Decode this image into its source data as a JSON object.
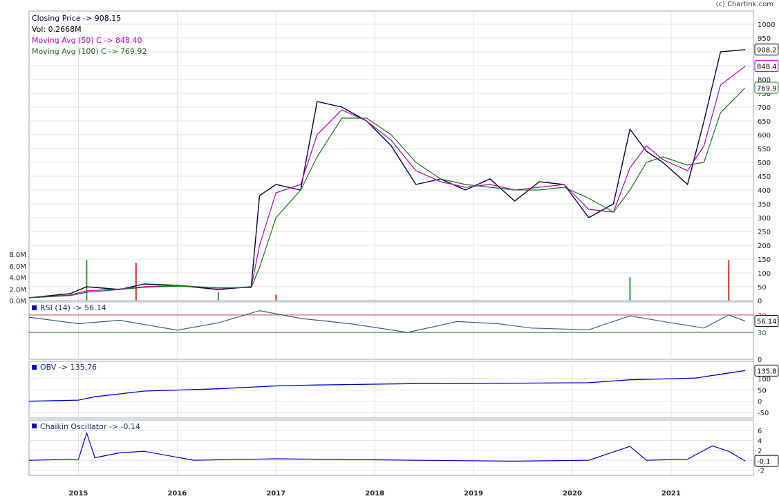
{
  "copyright": "(c) Chartink.com",
  "panels": {
    "price": {
      "legend": [
        {
          "text": "Closing Price -> 908.15",
          "color": "#00003c"
        },
        {
          "text": "Vol: 0.2668M",
          "color": "#000000"
        },
        {
          "text": "Moving Avg (50) C -> 848.40",
          "color": "#b400b4"
        },
        {
          "text": "Moving Avg (100) C -> 769.92",
          "color": "#1e6e1e"
        }
      ],
      "y_ticks": [
        "1000",
        "950",
        "900",
        "850",
        "800",
        "750",
        "700",
        "650",
        "600",
        "550",
        "500",
        "450",
        "400",
        "350",
        "300",
        "250",
        "200",
        "150",
        "100",
        "50",
        "0"
      ],
      "vol_ticks": [
        "8.0M",
        "6.0M",
        "4.0M",
        "2.0M",
        "0.0M"
      ],
      "last_labels": [
        {
          "text": "908.2",
          "value": 908.15,
          "color": "#000000"
        },
        {
          "text": "848.4",
          "value": 848.4,
          "color": "#b400b4"
        },
        {
          "text": "769.9",
          "value": 769.92,
          "color": "#1e6e1e"
        }
      ]
    },
    "rsi": {
      "legend": "RSI (14) -> 56.14",
      "y_ticks": [
        "70",
        "30",
        "0"
      ],
      "last_label": "56.14",
      "last_value": 56.14
    },
    "obv": {
      "legend": "OBV -> 135.76",
      "y_ticks": [
        "100",
        "50",
        "0",
        "-50"
      ],
      "last_label": "135.8",
      "last_value": 135.76
    },
    "chaikin": {
      "legend": "Chaikin Oscillator -> -0.14",
      "y_ticks": [
        "6",
        "4",
        "2",
        "0",
        "-2"
      ],
      "last_label": "-0.1",
      "last_value": -0.14
    }
  },
  "x_labels": [
    "2015",
    "2016",
    "2017",
    "2018",
    "2019",
    "2020",
    "2021"
  ],
  "colors": {
    "price": "#00003c",
    "ma50": "#b400b4",
    "ma100": "#1e6e1e",
    "indicator": "#0000c8",
    "rsi_line": "#3c5a82",
    "grid": "#dde3ea",
    "vol_up": "#2ca02c",
    "vol_down": "#d62728"
  },
  "chart_data": [
    {
      "type": "line",
      "title": "Closing Price -> 908.15",
      "x": [
        "2014-07",
        "2014-12",
        "2015-02",
        "2015-06",
        "2015-09",
        "2016-01",
        "2016-06",
        "2016-10",
        "2016-11",
        "2017-01",
        "2017-04",
        "2017-06",
        "2017-09",
        "2017-12",
        "2018-03",
        "2018-06",
        "2018-09",
        "2018-12",
        "2019-03",
        "2019-06",
        "2019-09",
        "2019-12",
        "2020-03",
        "2020-06",
        "2020-08",
        "2020-10",
        "2020-12",
        "2021-03",
        "2021-05",
        "2021-07",
        "2021-10"
      ],
      "series": [
        {
          "name": "Closing Price",
          "values": [
            10,
            25,
            50,
            40,
            60,
            55,
            40,
            50,
            380,
            420,
            400,
            720,
            700,
            650,
            560,
            420,
            440,
            400,
            440,
            360,
            430,
            420,
            300,
            350,
            620,
            540,
            500,
            420,
            650,
            900,
            908
          ]
        },
        {
          "name": "Moving Avg (50)",
          "values": [
            10,
            20,
            35,
            42,
            50,
            55,
            45,
            48,
            200,
            390,
            420,
            600,
            690,
            650,
            580,
            470,
            430,
            410,
            420,
            400,
            410,
            420,
            330,
            320,
            480,
            560,
            510,
            470,
            560,
            780,
            848
          ]
        },
        {
          "name": "Moving Avg (100)",
          "values": [
            10,
            18,
            30,
            40,
            48,
            52,
            46,
            47,
            120,
            300,
            400,
            520,
            660,
            660,
            600,
            500,
            440,
            420,
            410,
            400,
            400,
            410,
            370,
            320,
            400,
            500,
            520,
            490,
            500,
            680,
            770
          ]
        }
      ],
      "ylim": [
        0,
        1000
      ],
      "grid": true,
      "legend": "top-left"
    },
    {
      "type": "bar",
      "title": "Vol: 0.2668M",
      "categories": [
        "2015-02",
        "2015-08",
        "2016-06",
        "2017-01",
        "2020-08",
        "2021-08"
      ],
      "values": [
        7.0,
        6.5,
        1.5,
        1.0,
        4.0,
        7.0
      ],
      "ylim": [
        0,
        8
      ],
      "ylabel": ""
    },
    {
      "type": "line",
      "title": "RSI (14) -> 56.14",
      "x": [
        "2014-07",
        "2015-01",
        "2015-06",
        "2016-01",
        "2016-06",
        "2016-11",
        "2017-04",
        "2017-10",
        "2018-05",
        "2018-11",
        "2019-04",
        "2019-08",
        "2020-03",
        "2020-08",
        "2021-01",
        "2021-05",
        "2021-08",
        "2021-10"
      ],
      "series": [
        {
          "name": "RSI (14)",
          "values": [
            65,
            50,
            58,
            35,
            52,
            80,
            62,
            50,
            30,
            55,
            50,
            40,
            36,
            68,
            52,
            40,
            70,
            56
          ]
        }
      ],
      "ylim": [
        0,
        100
      ],
      "reference_lines": [
        70,
        30
      ]
    },
    {
      "type": "line",
      "title": "OBV -> 135.76",
      "x": [
        "2014-07",
        "2015-01",
        "2015-03",
        "2015-09",
        "2016-06",
        "2017-01",
        "2017-06",
        "2018-06",
        "2019-06",
        "2020-03",
        "2020-08",
        "2021-01",
        "2021-04",
        "2021-10"
      ],
      "series": [
        {
          "name": "OBV",
          "values": [
            0,
            5,
            20,
            45,
            55,
            68,
            72,
            78,
            80,
            82,
            95,
            100,
            103,
            136
          ]
        }
      ],
      "ylim": [
        -50,
        140
      ]
    },
    {
      "type": "line",
      "title": "Chaikin Oscillator -> -0.14",
      "x": [
        "2014-07",
        "2015-01",
        "2015-02",
        "2015-03",
        "2015-06",
        "2015-09",
        "2016-03",
        "2017-01",
        "2018-06",
        "2019-06",
        "2020-03",
        "2020-08",
        "2020-10",
        "2021-03",
        "2021-06",
        "2021-08",
        "2021-10"
      ],
      "series": [
        {
          "name": "Chaikin Oscillator",
          "values": [
            0,
            0.2,
            5.5,
            0.5,
            1.5,
            1.8,
            0,
            0.3,
            0,
            -0.2,
            0,
            2.8,
            0,
            0.2,
            2.9,
            1.8,
            -0.14
          ]
        }
      ],
      "ylim": [
        -2.5,
        7
      ]
    }
  ]
}
